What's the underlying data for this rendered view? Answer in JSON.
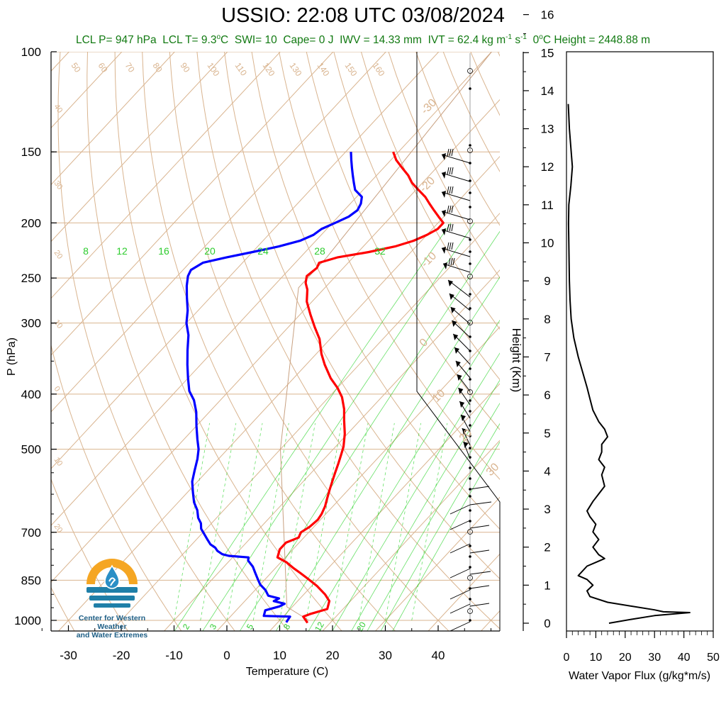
{
  "header": {
    "title": "USSIO: 22:08 UTC 03/08/2024",
    "subtitle_parts": {
      "lcl_p": "LCL P= 947 hPa",
      "lcl_t_pre": "LCL T= 9.3",
      "lcl_t_post": "C",
      "swi": "SWI= 10",
      "cape": "Cape= 0 J",
      "iwv": "IWV = 14.33 mm",
      "ivt_pre": "IVT = 62.4 kg m",
      "ivt_exp1": "-1",
      "ivt_mid": " s",
      "ivt_exp2": "-1",
      "zero_pre": "0",
      "zero_post": "C Height = 2448.88 m"
    }
  },
  "logo": {
    "line1": "Center for Western Weather",
    "line2": "and Water Extremes",
    "colors": {
      "sun": "#f5a623",
      "water": "#1f7fa8",
      "drop": "#2a8fc6"
    }
  },
  "colors": {
    "temperature": "#ff0000",
    "dewpoint": "#0000ff",
    "isotherm": "#d9b48f",
    "mixing_ratio": "#00cc00",
    "subtitle": "#127a12",
    "flux": "#000000"
  },
  "chart_data": [
    {
      "type": "line",
      "subtype": "skew-T log-P",
      "xlabel": "Temperature (C)",
      "ylabel": "P (hPa)",
      "xlim": [
        -35,
        50
      ],
      "ylim": [
        1050,
        100
      ],
      "y_scale": "log",
      "x_ticks": [
        -30,
        -20,
        -10,
        0,
        10,
        20,
        30,
        40
      ],
      "y_ticks": [
        100,
        150,
        200,
        250,
        300,
        400,
        500,
        700,
        850,
        1000
      ],
      "isotherm_labels": [
        "-40",
        "-30",
        "-20",
        "-10",
        "0",
        "10",
        "20",
        "30"
      ],
      "dry_adiabat_labels": [
        "50",
        "60",
        "70",
        "80",
        "90",
        "100",
        "110",
        "120",
        "130",
        "140",
        "150",
        "160"
      ],
      "mixing_ratio_labels": [
        "8",
        "12",
        "16",
        "20",
        "24",
        "28",
        "32"
      ],
      "mixing_ratio_bottom_labels": [
        "2",
        "3",
        "5",
        "8",
        "12",
        "20"
      ],
      "series": [
        {
          "name": "Temperature",
          "points": [
            [
              15.7,
              1010
            ],
            [
              13.8,
              985
            ],
            [
              14.6,
              975
            ],
            [
              17.0,
              955
            ],
            [
              16.0,
              925
            ],
            [
              14.0,
              900
            ],
            [
              11.0,
              870
            ],
            [
              8.0,
              845
            ],
            [
              5.5,
              825
            ],
            [
              3.5,
              810
            ],
            [
              1.0,
              790
            ],
            [
              -1.5,
              775
            ],
            [
              -2.5,
              750
            ],
            [
              -2.5,
              730
            ],
            [
              -1.0,
              715
            ],
            [
              -1.5,
              700
            ],
            [
              -0.8,
              685
            ],
            [
              -0.5,
              665
            ],
            [
              -0.8,
              650
            ],
            [
              -1.5,
              630
            ],
            [
              -2.5,
              610
            ],
            [
              -3.5,
              590
            ],
            [
              -4.5,
              570
            ],
            [
              -5.5,
              550
            ],
            [
              -6.5,
              530
            ],
            [
              -7.5,
              512
            ],
            [
              -8.5,
              495
            ],
            [
              -10.5,
              470
            ],
            [
              -13.0,
              445
            ],
            [
              -15.0,
              425
            ],
            [
              -17.5,
              405
            ],
            [
              -20.0,
              390
            ],
            [
              -23.0,
              375
            ],
            [
              -26.5,
              355
            ],
            [
              -29.0,
              340
            ],
            [
              -32.0,
              320
            ],
            [
              -35.0,
              305
            ],
            [
              -38.0,
              290
            ],
            [
              -41.0,
              275
            ],
            [
              -43.0,
              262
            ],
            [
              -44.5,
              255
            ],
            [
              -45.5,
              248
            ],
            [
              -45.0,
              240
            ],
            [
              -45.5,
              235
            ],
            [
              -43.0,
              230
            ],
            [
              -38.0,
              225
            ],
            [
              -34.0,
              220
            ],
            [
              -31.5,
              215
            ],
            [
              -30.0,
              210
            ],
            [
              -29.0,
              205
            ],
            [
              -29.0,
              200
            ],
            [
              -31.0,
              195
            ],
            [
              -33.0,
              190
            ],
            [
              -35.0,
              185
            ],
            [
              -37.0,
              180
            ],
            [
              -39.5,
              175
            ],
            [
              -42.0,
              170
            ],
            [
              -44.0,
              165
            ],
            [
              -46.5,
              160
            ],
            [
              -49.0,
              155
            ],
            [
              -51.0,
              150
            ]
          ]
        },
        {
          "name": "Dewpoint",
          "points": [
            [
              11.6,
              1008
            ],
            [
              11.4,
              995
            ],
            [
              11.3,
              985
            ],
            [
              6.2,
              982
            ],
            [
              5.5,
              960
            ],
            [
              7.5,
              945
            ],
            [
              8.0,
              935
            ],
            [
              5.5,
              925
            ],
            [
              6.0,
              915
            ],
            [
              3.5,
              905
            ],
            [
              2.0,
              885
            ],
            [
              0.0,
              865
            ],
            [
              -1.5,
              845
            ],
            [
              -3.0,
              825
            ],
            [
              -4.5,
              805
            ],
            [
              -6.5,
              785
            ],
            [
              -7.0,
              775
            ],
            [
              -11.0,
              770
            ],
            [
              -12.5,
              765
            ],
            [
              -14.0,
              755
            ],
            [
              -15.0,
              745
            ],
            [
              -16.5,
              735
            ],
            [
              -18.0,
              720
            ],
            [
              -19.5,
              705
            ],
            [
              -21.0,
              690
            ],
            [
              -22.0,
              675
            ],
            [
              -23.5,
              660
            ],
            [
              -25.0,
              640
            ],
            [
              -27.0,
              620
            ],
            [
              -29.0,
              595
            ],
            [
              -31.0,
              570
            ],
            [
              -32.5,
              545
            ],
            [
              -34.0,
              520
            ],
            [
              -35.5,
              500
            ],
            [
              -37.5,
              480
            ],
            [
              -40.0,
              455
            ],
            [
              -42.5,
              430
            ],
            [
              -45.0,
              410
            ],
            [
              -47.5,
              395
            ],
            [
              -50.0,
              375
            ],
            [
              -52.5,
              355
            ],
            [
              -55.0,
              335
            ],
            [
              -57.5,
              315
            ],
            [
              -60.0,
              300
            ],
            [
              -62.0,
              285
            ],
            [
              -64.5,
              270
            ],
            [
              -66.5,
              258
            ],
            [
              -68.0,
              248
            ],
            [
              -68.5,
              242
            ],
            [
              -67.5,
              235
            ],
            [
              -64.0,
              230
            ],
            [
              -60.0,
              225
            ],
            [
              -56.0,
              220
            ],
            [
              -53.0,
              215
            ],
            [
              -51.5,
              210
            ],
            [
              -51.0,
              205
            ],
            [
              -49.5,
              200
            ],
            [
              -48.0,
              195
            ],
            [
              -47.5,
              190
            ],
            [
              -48.0,
              185
            ],
            [
              -49.0,
              180
            ],
            [
              -51.5,
              175
            ],
            [
              -53.0,
              170
            ],
            [
              -54.5,
              165
            ],
            [
              -56.0,
              160
            ],
            [
              -57.5,
              155
            ],
            [
              -59.0,
              150
            ]
          ]
        }
      ],
      "annotations": {
        "wind_barbs": "plotted along right edge from 1000 to 150 hPa"
      }
    },
    {
      "type": "line",
      "xlabel": "Water Vapor Flux (g/kg*m/s)",
      "ylabel": "Height (Km)",
      "xlim": [
        0,
        50
      ],
      "ylim": [
        -0.3,
        16.4
      ],
      "x_ticks": [
        0,
        10,
        20,
        30,
        40,
        50
      ],
      "y_ticks": [
        0,
        1,
        2,
        3,
        4,
        5,
        6,
        7,
        8,
        9,
        10,
        11,
        12,
        13,
        14,
        15,
        16
      ],
      "series": [
        {
          "name": "Water Vapor Flux",
          "points": [
            [
              14.5,
              0.0
            ],
            [
              22,
              0.1
            ],
            [
              30,
              0.2
            ],
            [
              42,
              0.28
            ],
            [
              33,
              0.3
            ],
            [
              30,
              0.35
            ],
            [
              22,
              0.45
            ],
            [
              14,
              0.55
            ],
            [
              8,
              0.7
            ],
            [
              7,
              0.85
            ],
            [
              9,
              1.0
            ],
            [
              7,
              1.15
            ],
            [
              4,
              1.25
            ],
            [
              7,
              1.5
            ],
            [
              10,
              1.6
            ],
            [
              13,
              1.7
            ],
            [
              11,
              1.8
            ],
            [
              9,
              2.0
            ],
            [
              11,
              2.2
            ],
            [
              9,
              2.4
            ],
            [
              10,
              2.6
            ],
            [
              8,
              2.8
            ],
            [
              7,
              2.95
            ],
            [
              9,
              3.2
            ],
            [
              11,
              3.4
            ],
            [
              13,
              3.6
            ],
            [
              12,
              3.9
            ],
            [
              13,
              4.1
            ],
            [
              11,
              4.3
            ],
            [
              12,
              4.5
            ],
            [
              12,
              4.7
            ],
            [
              14,
              4.9
            ],
            [
              13,
              5.1
            ],
            [
              11,
              5.3
            ],
            [
              9,
              5.6
            ],
            [
              8,
              5.9
            ],
            [
              7,
              6.2
            ],
            [
              5.5,
              6.6
            ],
            [
              4,
              7.0
            ],
            [
              2.5,
              7.5
            ],
            [
              1.6,
              8.0
            ],
            [
              1.2,
              8.5
            ],
            [
              1.0,
              9.0
            ],
            [
              0.9,
              9.5
            ],
            [
              0.8,
              10.0
            ],
            [
              0.7,
              10.5
            ],
            [
              0.8,
              11.0
            ],
            [
              1.5,
              11.5
            ],
            [
              2.0,
              12.0
            ],
            [
              1.5,
              12.5
            ],
            [
              1.0,
              13.0
            ],
            [
              0.7,
              13.5
            ],
            [
              0.6,
              13.65
            ]
          ]
        }
      ]
    }
  ]
}
